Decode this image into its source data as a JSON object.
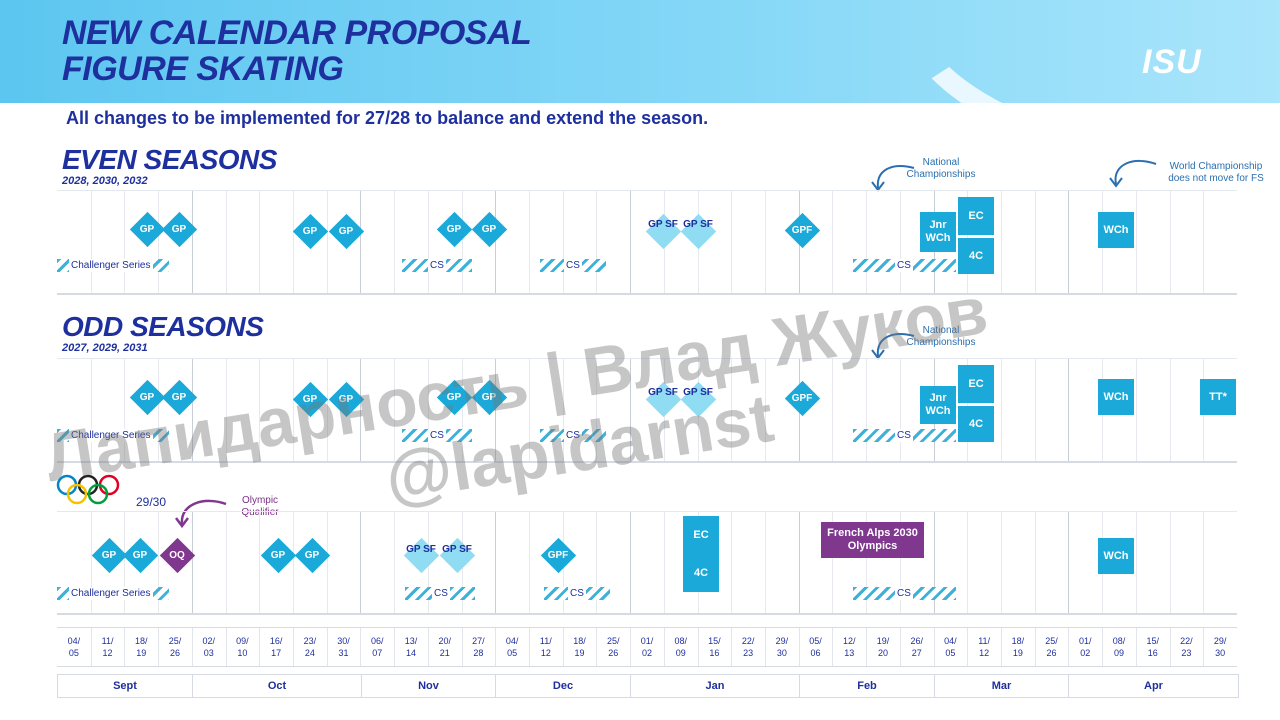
{
  "header": {
    "title_line1": "NEW CALENDAR PROPOSAL",
    "title_line2": "FIGURE SKATING",
    "logo": "ISU",
    "subtitle": "All changes to be implemented for 27/28 to balance and extend the season."
  },
  "even": {
    "title": "EVEN SEASONS",
    "years": "2028, 2030, 2032",
    "note_national": "National Championships",
    "note_world": "World Championship does not move for FS",
    "gp": "GP",
    "gpsf": "GP SF",
    "gpf": "GPF",
    "jnr_wch": "Jnr WCh",
    "ec": "EC",
    "four_c": "4C",
    "wch": "WCh",
    "challenger": "Challenger Series",
    "cs": "CS"
  },
  "odd": {
    "title": "ODD SEASONS",
    "years": "2027, 2029, 2031",
    "note_national": "National Championships",
    "gp": "GP",
    "gpsf": "GP SF",
    "gpf": "GPF",
    "jnr_wch": "Jnr WCh",
    "ec": "EC",
    "four_c": "4C",
    "wch": "WCh",
    "tt": "TT*",
    "challenger": "Challenger Series",
    "cs": "CS"
  },
  "olympic": {
    "season": "29/30",
    "note_oq": "Olympic Qualifier",
    "oq": "OQ",
    "gp": "GP",
    "gpsf": "GP SF",
    "gpf": "GPF",
    "ec": "EC",
    "four_c": "4C",
    "olympics": "French Alps 2030 Olympics",
    "wch": "WCh",
    "challenger": "Challenger Series",
    "cs": "CS"
  },
  "dates": [
    "04/05",
    "11/12",
    "18/19",
    "25/26",
    "02/03",
    "09/10",
    "16/17",
    "23/24",
    "30/31",
    "06/07",
    "13/14",
    "20/21",
    "27/28",
    "04/05",
    "11/12",
    "18/19",
    "25/26",
    "01/02",
    "08/09",
    "15/16",
    "22/23",
    "29/30",
    "05/06",
    "12/13",
    "19/20",
    "26/27",
    "04/05",
    "11/12",
    "18/19",
    "25/26",
    "01/02",
    "08/09",
    "15/16",
    "22/23",
    "29/30"
  ],
  "months": [
    "Sept",
    "Oct",
    "Nov",
    "Dec",
    "Jan",
    "Feb",
    "Mar",
    "Apr"
  ],
  "watermark": {
    "line1": "Лапидарность | Влад Жуков",
    "line2": "@lapidarnst"
  },
  "colors": {
    "navy": "#1e2f9e",
    "event_blue": "#1aa9d8",
    "semi_final": "#8fdcf3",
    "olympic_purple": "#80388f"
  }
}
